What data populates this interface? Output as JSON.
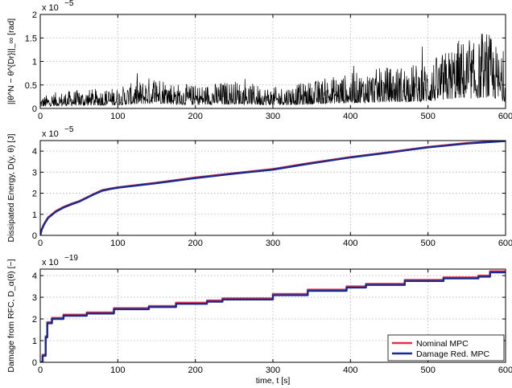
{
  "chart_data": [
    {
      "type": "line",
      "ylabel": "||θ^N − θ^{Dr}||_∞ [rad]",
      "xlim": [
        0,
        600
      ],
      "ylim": [
        0,
        2
      ],
      "yscale_label": "x 10",
      "yscale_exp": "−5",
      "x_ticks": [
        "0",
        "100",
        "200",
        "300",
        "400",
        "500",
        "600"
      ],
      "y_ticks": [
        "0",
        "0.5",
        "1",
        "1.5",
        "2"
      ],
      "y_tick_values": [
        0,
        0.5,
        1,
        1.5,
        2
      ],
      "series": [
        {
          "color": "#000000",
          "envelope": {
            "x": [
              0,
              20,
              50,
              100,
              130,
              150,
              175,
              200,
              250,
              300,
              340,
              380,
              420,
              450,
              480,
              500,
              520,
              540,
              560,
              580,
              590,
              600
            ],
            "y": [
              0.25,
              0.35,
              0.4,
              0.45,
              0.6,
              0.75,
              0.55,
              0.5,
              0.6,
              0.45,
              0.55,
              0.7,
              0.8,
              0.9,
              0.95,
              1.0,
              1.2,
              1.5,
              1.4,
              1.6,
              1.3,
              0.9
            ]
          }
        }
      ]
    },
    {
      "type": "line",
      "ylabel": "Dissipated Energy, D(y, θ) [J]",
      "xlim": [
        0,
        600
      ],
      "ylim": [
        0,
        4.5
      ],
      "yscale_label": "x 10",
      "yscale_exp": "−5",
      "x_ticks": [
        "0",
        "100",
        "200",
        "300",
        "400",
        "500",
        "600"
      ],
      "y_ticks": [
        "0",
        "1",
        "2",
        "3",
        "4"
      ],
      "y_tick_values": [
        0,
        1,
        2,
        3,
        4
      ],
      "series": [
        {
          "color": "#e0304e",
          "x": [
            0,
            2,
            5,
            10,
            20,
            30,
            40,
            50,
            60,
            70,
            80,
            90,
            100,
            150,
            200,
            250,
            300,
            350,
            400,
            450,
            500,
            550,
            600
          ],
          "y": [
            0,
            0.3,
            0.55,
            0.85,
            1.15,
            1.35,
            1.5,
            1.62,
            1.8,
            1.98,
            2.15,
            2.22,
            2.28,
            2.5,
            2.75,
            2.95,
            3.15,
            3.45,
            3.72,
            3.95,
            4.2,
            4.38,
            4.5
          ]
        },
        {
          "color": "#1a2a8c",
          "x": [
            0,
            2,
            5,
            10,
            20,
            30,
            40,
            50,
            60,
            70,
            80,
            90,
            100,
            150,
            200,
            250,
            300,
            350,
            400,
            450,
            500,
            550,
            600
          ],
          "y": [
            0,
            0.28,
            0.52,
            0.82,
            1.12,
            1.32,
            1.47,
            1.6,
            1.78,
            1.96,
            2.12,
            2.2,
            2.26,
            2.48,
            2.72,
            2.93,
            3.12,
            3.42,
            3.7,
            3.93,
            4.18,
            4.36,
            4.48
          ]
        }
      ]
    },
    {
      "type": "line",
      "ylabel": "Damage from RFC, D_α(θ) [−]",
      "xlabel": "time, t [s]",
      "xlim": [
        0,
        600
      ],
      "ylim": [
        0,
        4.3
      ],
      "yscale_label": "x 10",
      "yscale_exp": "−19",
      "x_ticks": [
        "0",
        "100",
        "200",
        "300",
        "400",
        "500",
        "600"
      ],
      "y_ticks": [
        "0",
        "1",
        "2",
        "3",
        "4"
      ],
      "y_tick_values": [
        0,
        1,
        2,
        3,
        4
      ],
      "legend_position": "bottom-right",
      "series": [
        {
          "name": "Nominal MPC",
          "color": "#e0304e",
          "x": [
            0,
            3,
            3,
            7,
            7,
            9,
            9,
            15,
            15,
            30,
            30,
            60,
            60,
            95,
            95,
            140,
            140,
            175,
            175,
            215,
            215,
            235,
            235,
            300,
            300,
            345,
            345,
            395,
            395,
            420,
            420,
            470,
            470,
            520,
            520,
            565,
            565,
            580,
            580,
            600
          ],
          "y": [
            0,
            0,
            0.35,
            0.35,
            1.2,
            1.2,
            1.85,
            1.85,
            2.05,
            2.05,
            2.2,
            2.2,
            2.3,
            2.3,
            2.5,
            2.5,
            2.6,
            2.6,
            2.75,
            2.75,
            2.85,
            2.85,
            2.95,
            2.95,
            3.15,
            3.15,
            3.35,
            3.35,
            3.5,
            3.5,
            3.62,
            3.62,
            3.8,
            3.8,
            3.92,
            3.92,
            4.0,
            4.0,
            4.2,
            4.2
          ]
        },
        {
          "name": "Damage Red. MPC",
          "color": "#1a2a8c",
          "x": [
            0,
            3,
            3,
            7,
            7,
            9,
            9,
            15,
            15,
            30,
            30,
            60,
            60,
            95,
            95,
            140,
            140,
            175,
            175,
            215,
            215,
            235,
            235,
            300,
            300,
            345,
            345,
            395,
            395,
            420,
            420,
            470,
            470,
            520,
            520,
            565,
            565,
            580,
            580,
            600
          ],
          "y": [
            0,
            0,
            0.3,
            0.3,
            1.15,
            1.15,
            1.8,
            1.8,
            2.0,
            2.0,
            2.15,
            2.15,
            2.25,
            2.25,
            2.45,
            2.45,
            2.55,
            2.55,
            2.7,
            2.7,
            2.8,
            2.8,
            2.9,
            2.9,
            3.1,
            3.1,
            3.3,
            3.3,
            3.45,
            3.45,
            3.57,
            3.57,
            3.75,
            3.75,
            3.87,
            3.87,
            3.95,
            3.95,
            4.15,
            4.15
          ]
        }
      ]
    }
  ]
}
